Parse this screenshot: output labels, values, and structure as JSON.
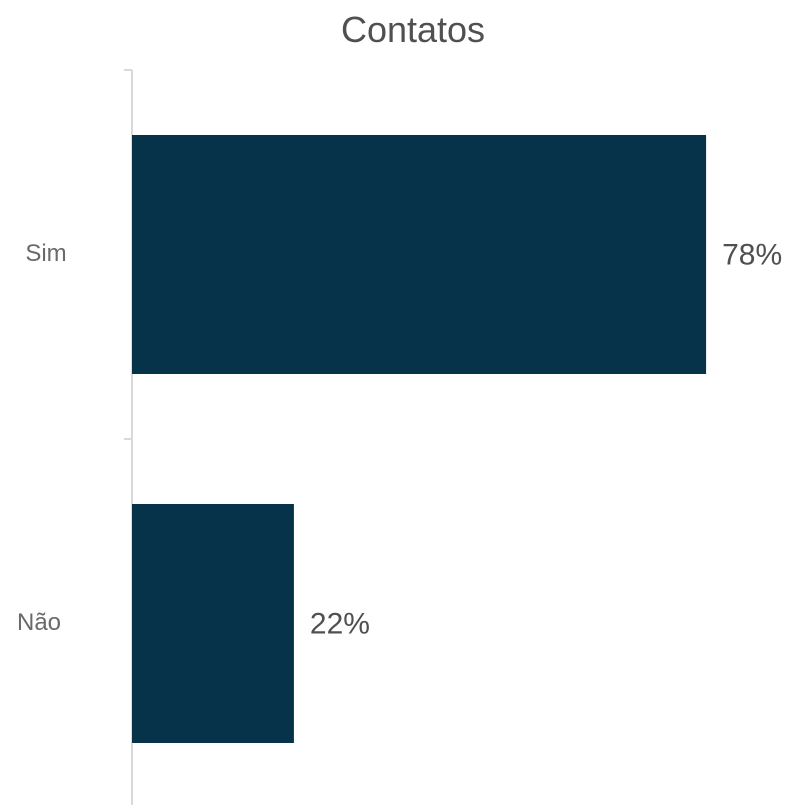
{
  "chart_data": {
    "type": "bar",
    "orientation": "horizontal",
    "title": "Contatos",
    "categories": [
      "Sim",
      "Não"
    ],
    "values": [
      78,
      22
    ],
    "data_labels": [
      "78%",
      "22%"
    ],
    "xlim": [
      0,
      100
    ],
    "xlabel": "",
    "ylabel": "",
    "grid": false,
    "legend": "none",
    "bar_color": "#06334a",
    "axis_color": "#d9d9d9"
  }
}
